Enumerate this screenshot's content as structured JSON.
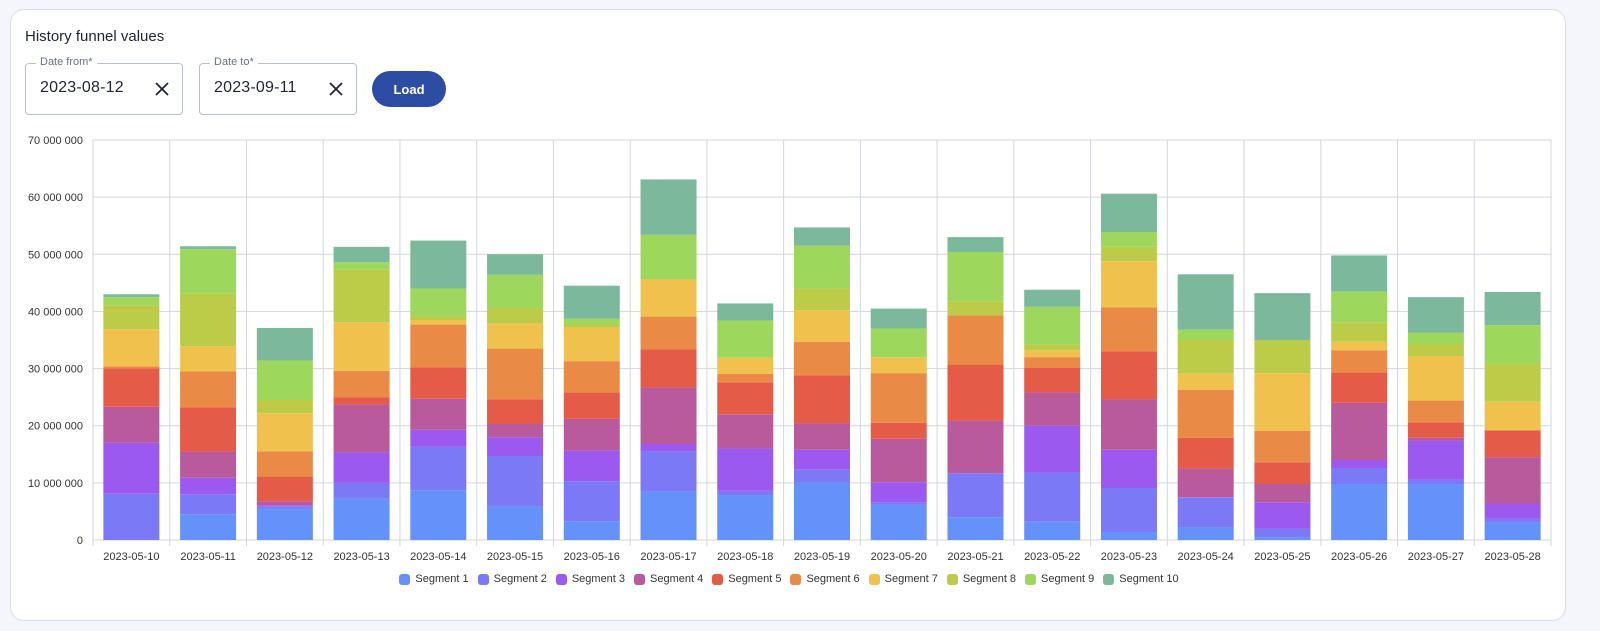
{
  "panel": {
    "title": "History funnel values",
    "date_from": {
      "label": "Date from*",
      "value": "2023-08-12"
    },
    "date_to": {
      "label": "Date to*",
      "value": "2023-09-11"
    },
    "load_label": "Load"
  },
  "chart_data": {
    "type": "bar",
    "stacked": true,
    "title": "",
    "xlabel": "",
    "ylabel": "",
    "ylim": [
      0,
      70000000
    ],
    "yticks": [
      0,
      10000000,
      20000000,
      30000000,
      40000000,
      50000000,
      60000000,
      70000000
    ],
    "ytick_labels": [
      "0",
      "10 000 000",
      "20 000 000",
      "30 000 000",
      "40 000 000",
      "50 000 000",
      "60 000 000",
      "70 000 000"
    ],
    "grid": true,
    "legend_position": "bottom-center",
    "categories": [
      "2023-05-10",
      "2023-05-11",
      "2023-05-12",
      "2023-05-13",
      "2023-05-14",
      "2023-05-15",
      "2023-05-16",
      "2023-05-17",
      "2023-05-18",
      "2023-05-19",
      "2023-05-20",
      "2023-05-21",
      "2023-05-22",
      "2023-05-23",
      "2023-05-24",
      "2023-05-25",
      "2023-05-26",
      "2023-05-27",
      "2023-05-28"
    ],
    "series": [
      {
        "name": "Segment 1",
        "color": "#6591fb",
        "values": [
          0,
          4500000,
          5500000,
          7200000,
          8700000,
          5800000,
          3300000,
          8500000,
          7800000,
          10000000,
          6200000,
          4000000,
          3200000,
          1400000,
          2200000,
          500000,
          9800000,
          9800000,
          3000000
        ]
      },
      {
        "name": "Segment 2",
        "color": "#7b79f5",
        "values": [
          8100000,
          3500000,
          400000,
          2800000,
          7600000,
          8900000,
          7000000,
          7000000,
          800000,
          2300000,
          400000,
          7700000,
          8600000,
          7700000,
          5200000,
          1500000,
          2800000,
          800000,
          700000
        ]
      },
      {
        "name": "Segment 3",
        "color": "#9b59f0",
        "values": [
          8900000,
          2900000,
          200000,
          5300000,
          3000000,
          3300000,
          5300000,
          1300000,
          7400000,
          3500000,
          3500000,
          0,
          8200000,
          6700000,
          100000,
          4600000,
          1400000,
          6800000,
          2600000
        ]
      },
      {
        "name": "Segment 4",
        "color": "#b95a9c",
        "values": [
          6300000,
          4600000,
          700000,
          8400000,
          5400000,
          2300000,
          5600000,
          9900000,
          6000000,
          4600000,
          7600000,
          9200000,
          5800000,
          8800000,
          5000000,
          3200000,
          10000000,
          500000,
          8200000
        ]
      },
      {
        "name": "Segment 5",
        "color": "#e45b48",
        "values": [
          6700000,
          7700000,
          4300000,
          1300000,
          5500000,
          4300000,
          4600000,
          6700000,
          5600000,
          8400000,
          2800000,
          9800000,
          4300000,
          8400000,
          5400000,
          3800000,
          5300000,
          2700000,
          4700000
        ]
      },
      {
        "name": "Segment 6",
        "color": "#e98a46",
        "values": [
          400000,
          6300000,
          4400000,
          4600000,
          7500000,
          8900000,
          5500000,
          5700000,
          1500000,
          5900000,
          8700000,
          8600000,
          1900000,
          7700000,
          8400000,
          5500000,
          3900000,
          3800000,
          0
        ]
      },
      {
        "name": "Segment 7",
        "color": "#f0c24d",
        "values": [
          6500000,
          4400000,
          6700000,
          8500000,
          800000,
          4400000,
          5900000,
          6500000,
          2800000,
          5500000,
          2800000,
          0,
          1200000,
          8100000,
          2800000,
          10100000,
          1500000,
          7800000,
          5000000
        ]
      },
      {
        "name": "Segment 8",
        "color": "#bccc48",
        "values": [
          4200000,
          9200000,
          2300000,
          9200000,
          600000,
          2700000,
          600000,
          0,
          0,
          3800000,
          0,
          2500000,
          1000000,
          2500000,
          5900000,
          5800000,
          3400000,
          2100000,
          6700000
        ]
      },
      {
        "name": "Segment 9",
        "color": "#9dd85c",
        "values": [
          1400000,
          7800000,
          6900000,
          1300000,
          4900000,
          5800000,
          900000,
          7800000,
          6500000,
          7500000,
          5000000,
          8600000,
          6600000,
          2600000,
          1800000,
          0,
          5400000,
          2000000,
          6700000
        ]
      },
      {
        "name": "Segment 10",
        "color": "#7bb89c",
        "values": [
          500000,
          500000,
          5700000,
          2700000,
          8400000,
          3600000,
          5800000,
          9700000,
          3000000,
          3200000,
          3500000,
          2600000,
          3000000,
          6700000,
          9700000,
          8200000,
          6300000,
          6200000,
          5800000
        ]
      }
    ]
  }
}
